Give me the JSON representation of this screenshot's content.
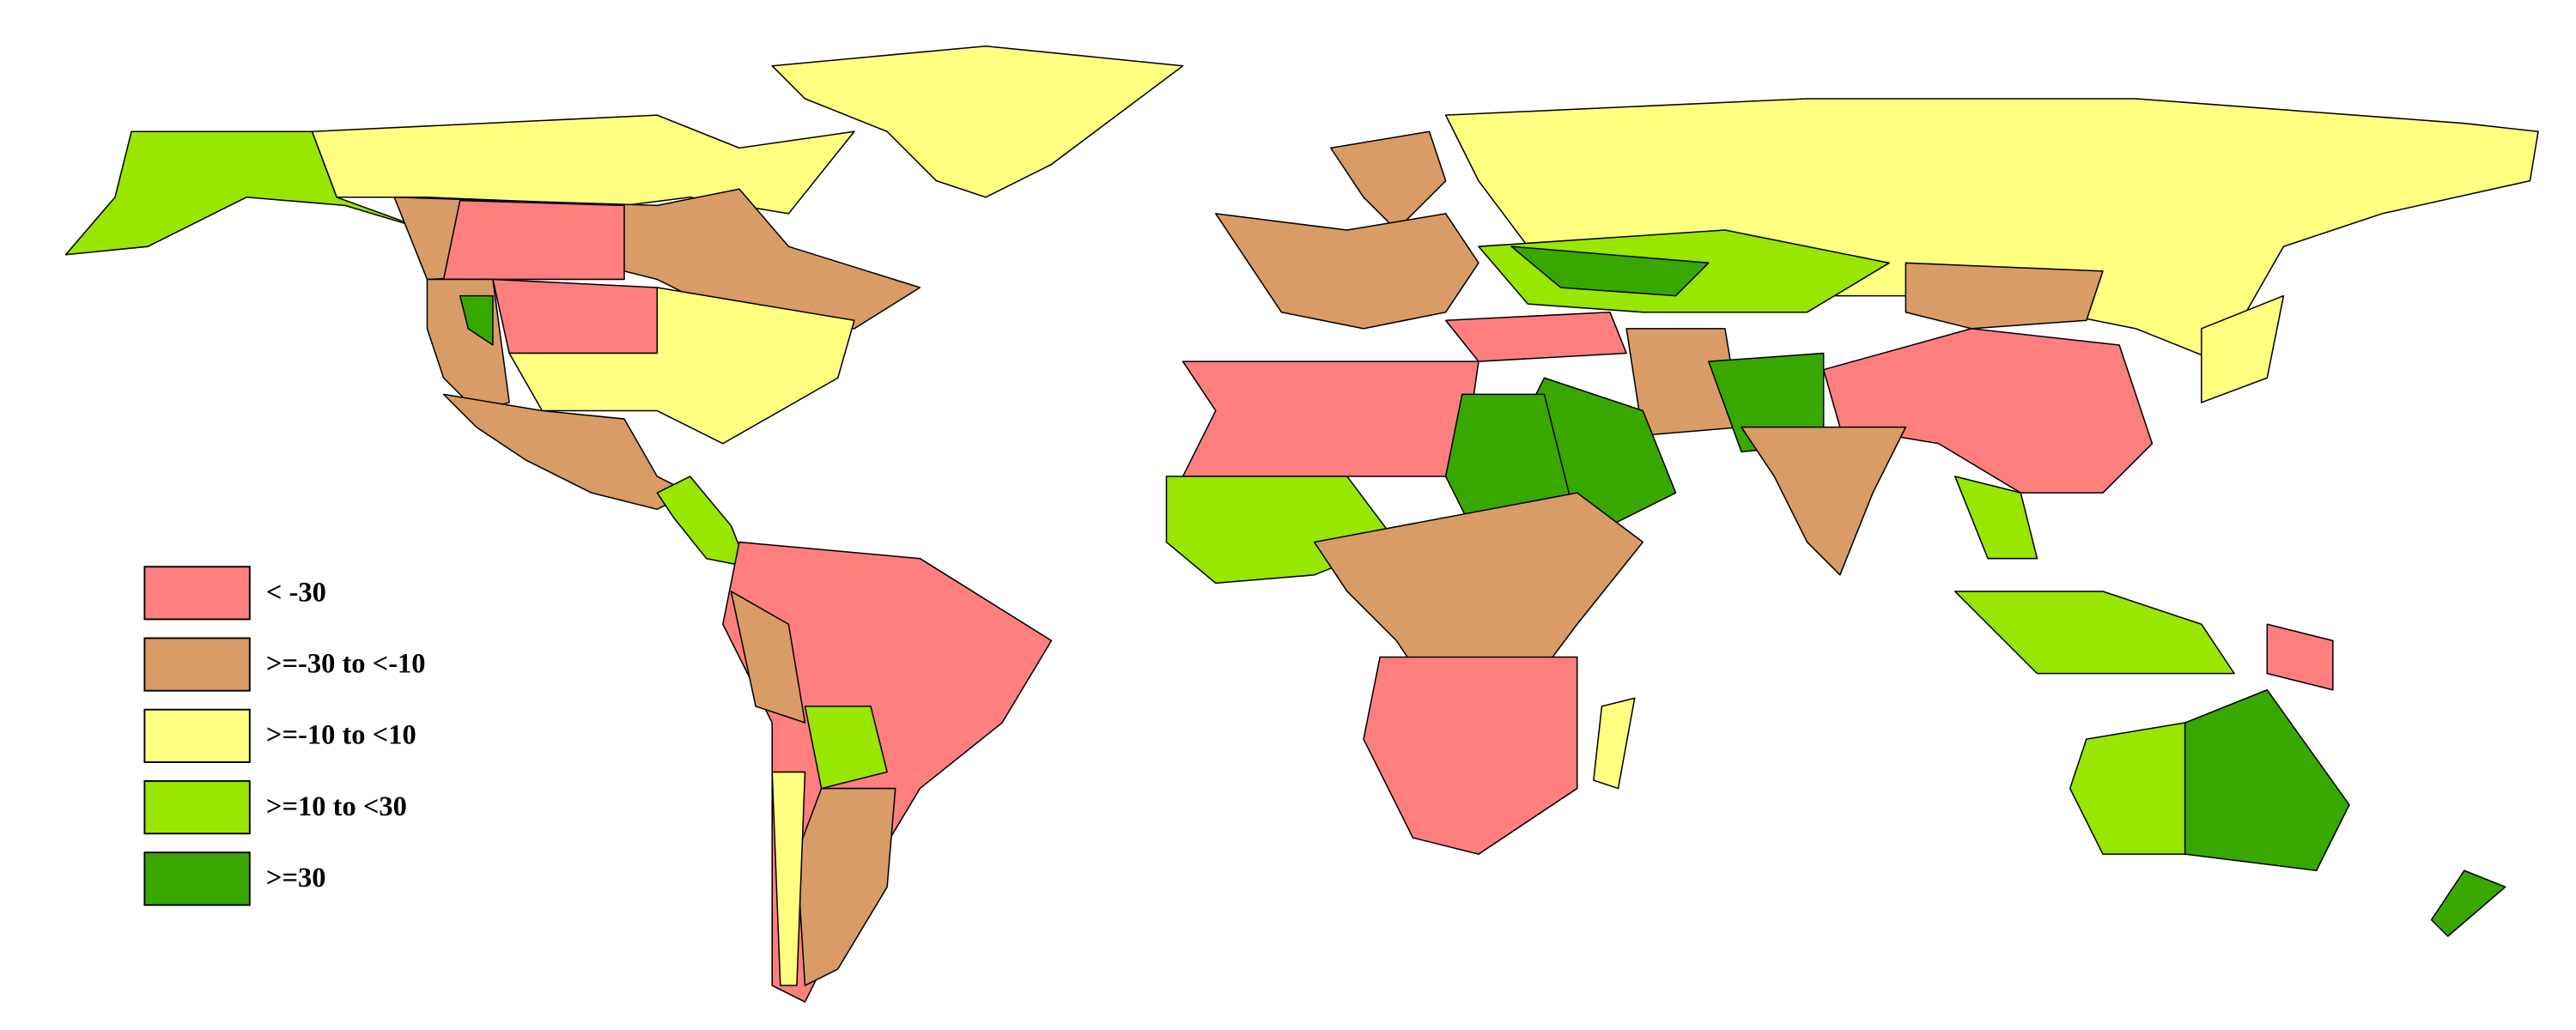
{
  "legend": {
    "items": [
      {
        "label": "< -30",
        "color": "#ff7f7f"
      },
      {
        "label": ">=-30 to <-10",
        "color": "#d99c66"
      },
      {
        "label": ">=-10 to <10",
        "color": "#ffff80"
      },
      {
        "label": ">=10 to <30",
        "color": "#99e600"
      },
      {
        "label": ">=30",
        "color": "#38a800"
      }
    ]
  }
}
